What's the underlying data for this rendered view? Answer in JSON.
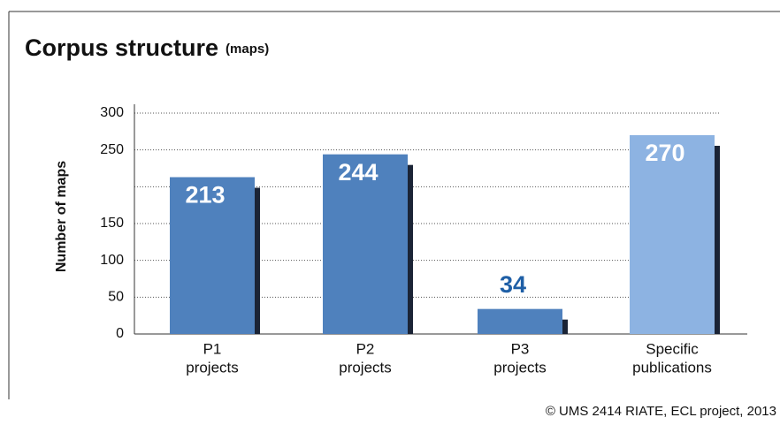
{
  "chart_data": {
    "type": "bar",
    "title": "Corpus structure",
    "subtitle": "(maps)",
    "y_label": "Number of maps",
    "categories": [
      [
        "P1",
        "projects"
      ],
      [
        "P2",
        "projects"
      ],
      [
        "P3",
        "projects"
      ],
      [
        "Specific",
        "publications"
      ]
    ],
    "values": [
      213,
      244,
      34,
      270
    ],
    "colors": [
      "#4f81bd",
      "#4f81bd",
      "#4f81bd",
      "#8db3e2"
    ],
    "ylim": [
      0,
      300
    ],
    "yticks": [
      0,
      50,
      100,
      150,
      {
        "value": 200,
        "label": null
      },
      250,
      300
    ],
    "grid": true,
    "credit": "© UMS 2414 RIATE, ECL project, 2013"
  }
}
